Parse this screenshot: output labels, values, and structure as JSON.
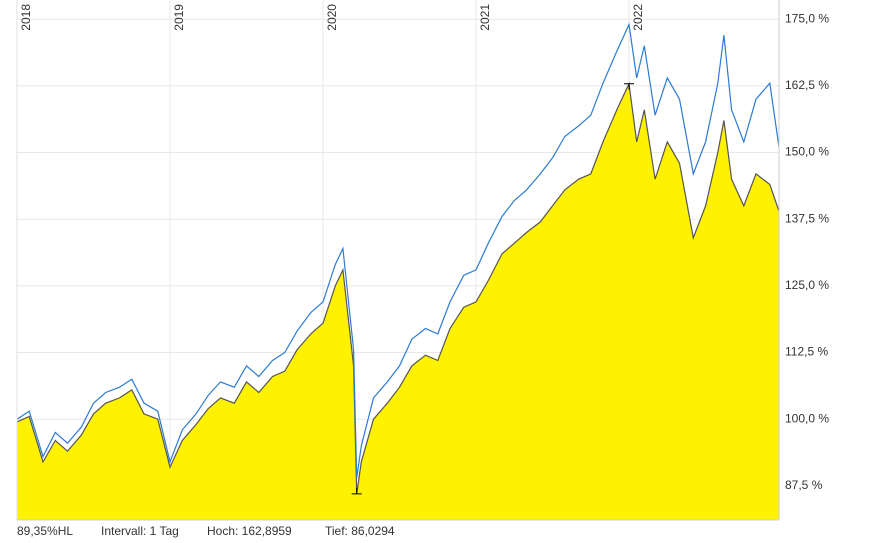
{
  "chart_data": {
    "type": "line",
    "x": [
      2018.0,
      2018.08,
      2018.17,
      2018.25,
      2018.33,
      2018.42,
      2018.5,
      2018.58,
      2018.67,
      2018.75,
      2018.83,
      2018.92,
      2019.0,
      2019.08,
      2019.17,
      2019.25,
      2019.33,
      2019.42,
      2019.5,
      2019.58,
      2019.67,
      2019.75,
      2019.83,
      2019.92,
      2020.0,
      2020.08,
      2020.13,
      2020.2,
      2020.22,
      2020.25,
      2020.33,
      2020.42,
      2020.5,
      2020.58,
      2020.67,
      2020.75,
      2020.83,
      2020.92,
      2021.0,
      2021.08,
      2021.17,
      2021.25,
      2021.33,
      2021.42,
      2021.5,
      2021.58,
      2021.67,
      2021.75,
      2021.83,
      2021.92,
      2022.0,
      2022.05,
      2022.1,
      2022.17,
      2022.25,
      2022.33,
      2022.42,
      2022.5,
      2022.58,
      2022.62,
      2022.67,
      2022.75,
      2022.83,
      2022.92,
      2022.98
    ],
    "series": [
      {
        "color": "#555555",
        "fill": "#fff200",
        "values": [
          99.5,
          100.5,
          92,
          96,
          94,
          97,
          101,
          103,
          104,
          105.5,
          101,
          100,
          91,
          96,
          99,
          102,
          104,
          103,
          107,
          105,
          108,
          109,
          113,
          116,
          118,
          125,
          128,
          110,
          86,
          92,
          100,
          103,
          106,
          110,
          112,
          111,
          117,
          121,
          122,
          126,
          131,
          133,
          135,
          137,
          140,
          143,
          145,
          146,
          152,
          158,
          162.9,
          152,
          158,
          145,
          152,
          148,
          134,
          140,
          150,
          156,
          145,
          140,
          146,
          144,
          139
        ]
      },
      {
        "color": "#2b7bd3",
        "values": [
          100,
          101.5,
          93,
          97.5,
          95.5,
          98.5,
          103,
          105,
          106,
          107.5,
          103,
          101.5,
          92,
          98,
          101,
          104.5,
          107,
          106,
          110,
          108,
          111,
          112.5,
          116.5,
          120,
          122,
          129,
          132,
          113,
          89,
          95,
          104,
          107,
          110,
          115,
          117,
          116,
          122,
          127,
          128,
          133,
          138,
          141,
          143,
          146,
          149,
          153,
          155,
          157,
          163,
          169,
          174,
          164,
          170,
          157,
          164,
          160,
          146,
          152,
          163,
          172,
          158,
          152,
          160,
          163,
          151
        ]
      }
    ],
    "xlim": [
      2018.0,
      2022.98
    ],
    "xticks": [
      2018,
      2019,
      2020,
      2021,
      2022
    ],
    "ylim": [
      81.1,
      178.6
    ],
    "yticks": [
      {
        "value": 87.5,
        "label": "87,5 %"
      },
      {
        "value": 100,
        "label": "100,0 %"
      },
      {
        "value": 112.5,
        "label": "112,5 %"
      },
      {
        "value": 125,
        "label": "125,0 %"
      },
      {
        "value": 137.5,
        "label": "137,5 %"
      },
      {
        "value": 150,
        "label": "150,0 %"
      },
      {
        "value": 162.5,
        "label": "162,5 %"
      },
      {
        "value": 175,
        "label": "175,0 %"
      }
    ],
    "grid": true,
    "annotations": [
      "89,35%HL",
      "Intervall: 1 Tag",
      "Hoch: 162,8959",
      "Tief: 86,0294"
    ]
  }
}
